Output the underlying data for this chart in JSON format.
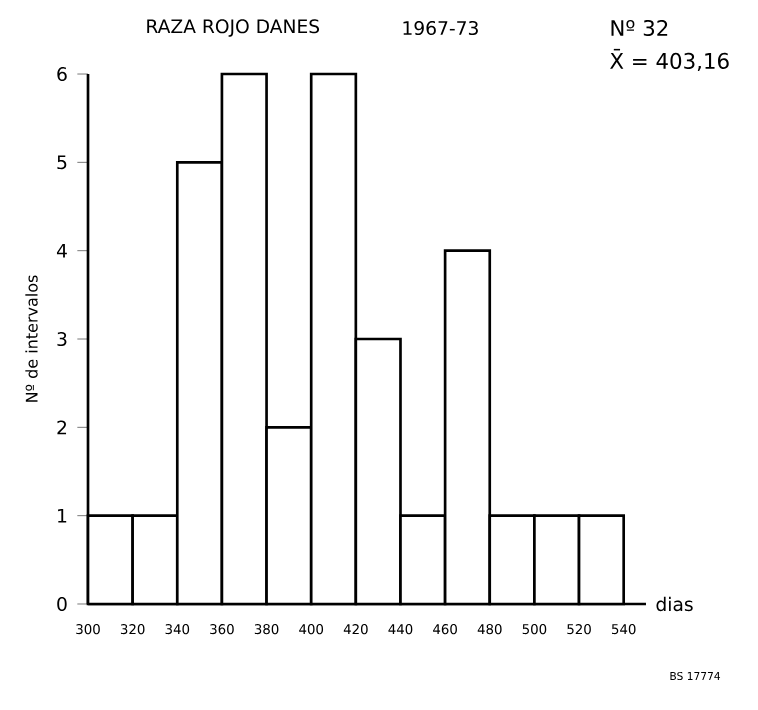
{
  "chart_data": {
    "type": "histogram",
    "title": "RAZA ROJO DANES",
    "subtitle": "1967-73",
    "xlabel": "dias",
    "ylabel": "Nº de intervalos",
    "annotations": [
      "Nº  32",
      "X̄ = 403,16",
      "BS 17774"
    ],
    "bins": [
      300,
      320,
      340,
      360,
      380,
      400,
      420,
      440,
      460,
      480,
      500,
      520,
      540
    ],
    "values": [
      1,
      1,
      5,
      6,
      2,
      6,
      3,
      1,
      4,
      1,
      1,
      1
    ],
    "color": "#000000",
    "xlim": [
      300,
      550
    ],
    "ylim": [
      0,
      6
    ],
    "xticks": [
      300,
      320,
      340,
      360,
      380,
      400,
      420,
      440,
      460,
      480,
      500,
      520,
      540
    ],
    "yticks": [
      0,
      1,
      2,
      3,
      4,
      5,
      6
    ],
    "grid": false
  }
}
